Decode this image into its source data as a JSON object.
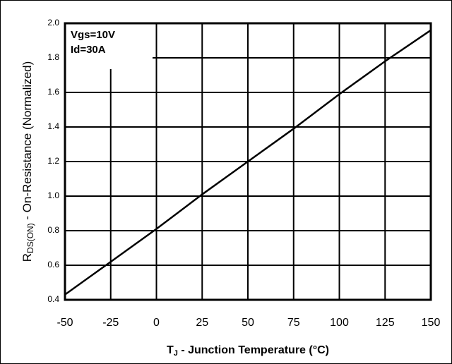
{
  "chart_data": {
    "type": "line",
    "xlabel": {
      "main": "T",
      "sub": "J",
      "rest": " - Junction Temperature (°C)"
    },
    "ylabel": {
      "main": "R",
      "sub": "DS(ON)",
      "rest": " - On-Resistance (Normalized)"
    },
    "annotation": [
      "Vgs=10V",
      "Id=30A"
    ],
    "x": [
      -50,
      -25,
      0,
      25,
      50,
      75,
      100,
      125,
      150
    ],
    "series": [
      {
        "color": "#000000",
        "values": [
          0.43,
          0.62,
          0.81,
          1.01,
          1.2,
          1.39,
          1.59,
          1.78,
          1.96
        ]
      }
    ],
    "xlim": [
      -50,
      150
    ],
    "xticks": [
      -50,
      -25,
      0,
      25,
      50,
      75,
      100,
      125,
      150
    ],
    "ylim": [
      0.4,
      2.0
    ],
    "yticks": [
      0.4,
      0.6,
      0.8,
      {
        "value": 1,
        "label": "1.0"
      },
      1.2,
      1.4,
      1.6,
      1.8,
      {
        "value": 2,
        "label": "2.0"
      }
    ],
    "grid": true
  }
}
